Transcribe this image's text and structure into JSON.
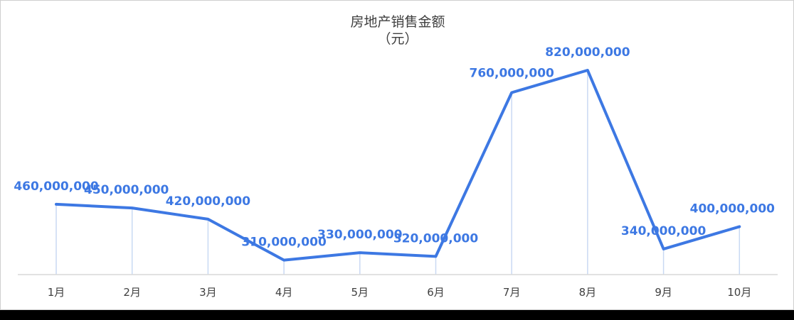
{
  "chart_data": {
    "type": "line",
    "title": "房地产销售金额",
    "subtitle": "（元）",
    "categories": [
      "1月",
      "2月",
      "3月",
      "4月",
      "5月",
      "6月",
      "7月",
      "8月",
      "9月",
      "10月"
    ],
    "values": [
      460000000,
      450000000,
      420000000,
      310000000,
      330000000,
      320000000,
      760000000,
      820000000,
      340000000,
      400000000
    ],
    "data_labels": [
      "460,000,000",
      "450,000,000",
      "420,000,000",
      "310,000,000",
      "330,000,000",
      "320,000,000",
      "760,000,000",
      "820,000,000",
      "340,000,000",
      "400,000,000"
    ],
    "ylim": [
      0,
      900000000
    ],
    "grid": false,
    "legend": "none",
    "colors": {
      "line": "#3d78e3",
      "label": "#3d78e3",
      "drop_line": "#c9d9f3",
      "axis": "#d9d9d9"
    }
  }
}
